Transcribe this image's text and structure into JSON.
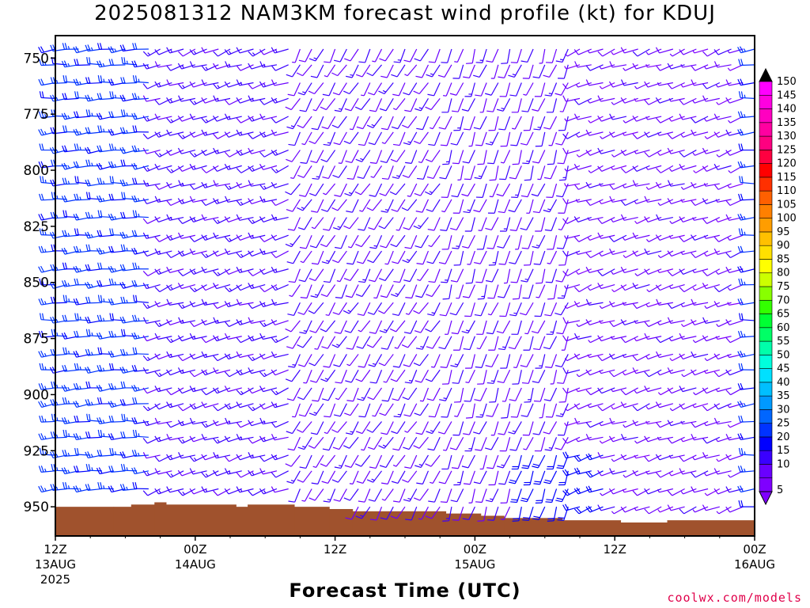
{
  "title": "2025081312 NAM3KM forecast wind profile (kt) for KDUJ",
  "xlabel": "Forecast Time (UTC)",
  "credit": "coolwx.com/models",
  "chart_data": {
    "type": "wind_barb_profile",
    "title": "2025081312 NAM3KM forecast wind profile (kt) for KDUJ",
    "xlabel": "Forecast Time (UTC)",
    "ylabel": "",
    "units": "kt",
    "x_range_hours": [
      0,
      60
    ],
    "x_step_hours": 1,
    "y_range_mb": [
      740,
      963
    ],
    "y_inverted": true,
    "y_ticks": [
      750,
      775,
      800,
      825,
      850,
      875,
      900,
      925,
      950
    ],
    "x_ticks": [
      {
        "hour": 0,
        "label": "12Z",
        "date": "13AUG",
        "year": "2025"
      },
      {
        "hour": 12,
        "label": "00Z",
        "date": "14AUG",
        "year": ""
      },
      {
        "hour": 24,
        "label": "12Z",
        "date": "",
        "year": ""
      },
      {
        "hour": 36,
        "label": "00Z",
        "date": "15AUG",
        "year": ""
      },
      {
        "hour": 48,
        "label": "12Z",
        "date": "",
        "year": ""
      },
      {
        "hour": 60,
        "label": "00Z",
        "date": "16AUG",
        "year": ""
      }
    ],
    "levels_mb": [
      746,
      753,
      761,
      768,
      776,
      783,
      791,
      798,
      806,
      813,
      821,
      829,
      836,
      844,
      851,
      859,
      867,
      874,
      882,
      889,
      897,
      904,
      912,
      919,
      927,
      934,
      942,
      950
    ],
    "terrain_surface_mb": [
      {
        "from": 0,
        "to": 5,
        "p": 950
      },
      {
        "from": 5,
        "to": 6.5,
        "p": 950
      },
      {
        "from": 6.5,
        "to": 8.5,
        "p": 949
      },
      {
        "from": 8.5,
        "to": 9.5,
        "p": 948
      },
      {
        "from": 9.5,
        "to": 15.5,
        "p": 949
      },
      {
        "from": 15.5,
        "to": 16.5,
        "p": 950
      },
      {
        "from": 16.5,
        "to": 20.5,
        "p": 949
      },
      {
        "from": 20.5,
        "to": 23.5,
        "p": 950
      },
      {
        "from": 23.5,
        "to": 25.5,
        "p": 951
      },
      {
        "from": 25.5,
        "to": 33.5,
        "p": 952
      },
      {
        "from": 33.5,
        "to": 36.5,
        "p": 953
      },
      {
        "from": 36.5,
        "to": 38.5,
        "p": 954
      },
      {
        "from": 38.5,
        "to": 43.5,
        "p": 955
      },
      {
        "from": 43.5,
        "to": 48.5,
        "p": 956
      },
      {
        "from": 48.5,
        "to": 52.5,
        "p": 957
      },
      {
        "from": 52.5,
        "to": 60,
        "p": 956
      }
    ],
    "direction_regimes_deg": [
      {
        "from_hour": 0,
        "to_hour": 9,
        "direction": 265,
        "speed_kt": 22
      },
      {
        "from_hour": 9,
        "to_hour": 21,
        "direction": 250,
        "speed_kt": 12
      },
      {
        "from_hour": 21,
        "to_hour": 34,
        "direction": 210,
        "speed_kt": 10
      },
      {
        "from_hour": 34,
        "to_hour": 45,
        "direction": 200,
        "speed_kt": 10
      },
      {
        "from_hour": 45,
        "to_hour": 60,
        "direction": 250,
        "speed_kt": 8
      }
    ],
    "colorbar": {
      "values": [
        5,
        10,
        15,
        20,
        25,
        30,
        35,
        40,
        45,
        50,
        55,
        60,
        65,
        70,
        75,
        80,
        85,
        90,
        95,
        100,
        105,
        110,
        115,
        120,
        125,
        130,
        135,
        140,
        145,
        150
      ],
      "colors": [
        "#7f00ff",
        "#6a00ff",
        "#3a00ff",
        "#0000ff",
        "#0033ff",
        "#0066ff",
        "#0099ff",
        "#00bfff",
        "#00e0ff",
        "#00ffdd",
        "#00ffaa",
        "#00ff66",
        "#00ff33",
        "#33ff00",
        "#88ff00",
        "#ccff00",
        "#ffff00",
        "#ffe000",
        "#ffc000",
        "#ff9d00",
        "#ff8000",
        "#ff6000",
        "#ff3000",
        "#ff0000",
        "#ff0040",
        "#ff0080",
        "#ff00a0",
        "#ff00c0",
        "#ff00e0",
        "#ff00ff"
      ]
    }
  }
}
